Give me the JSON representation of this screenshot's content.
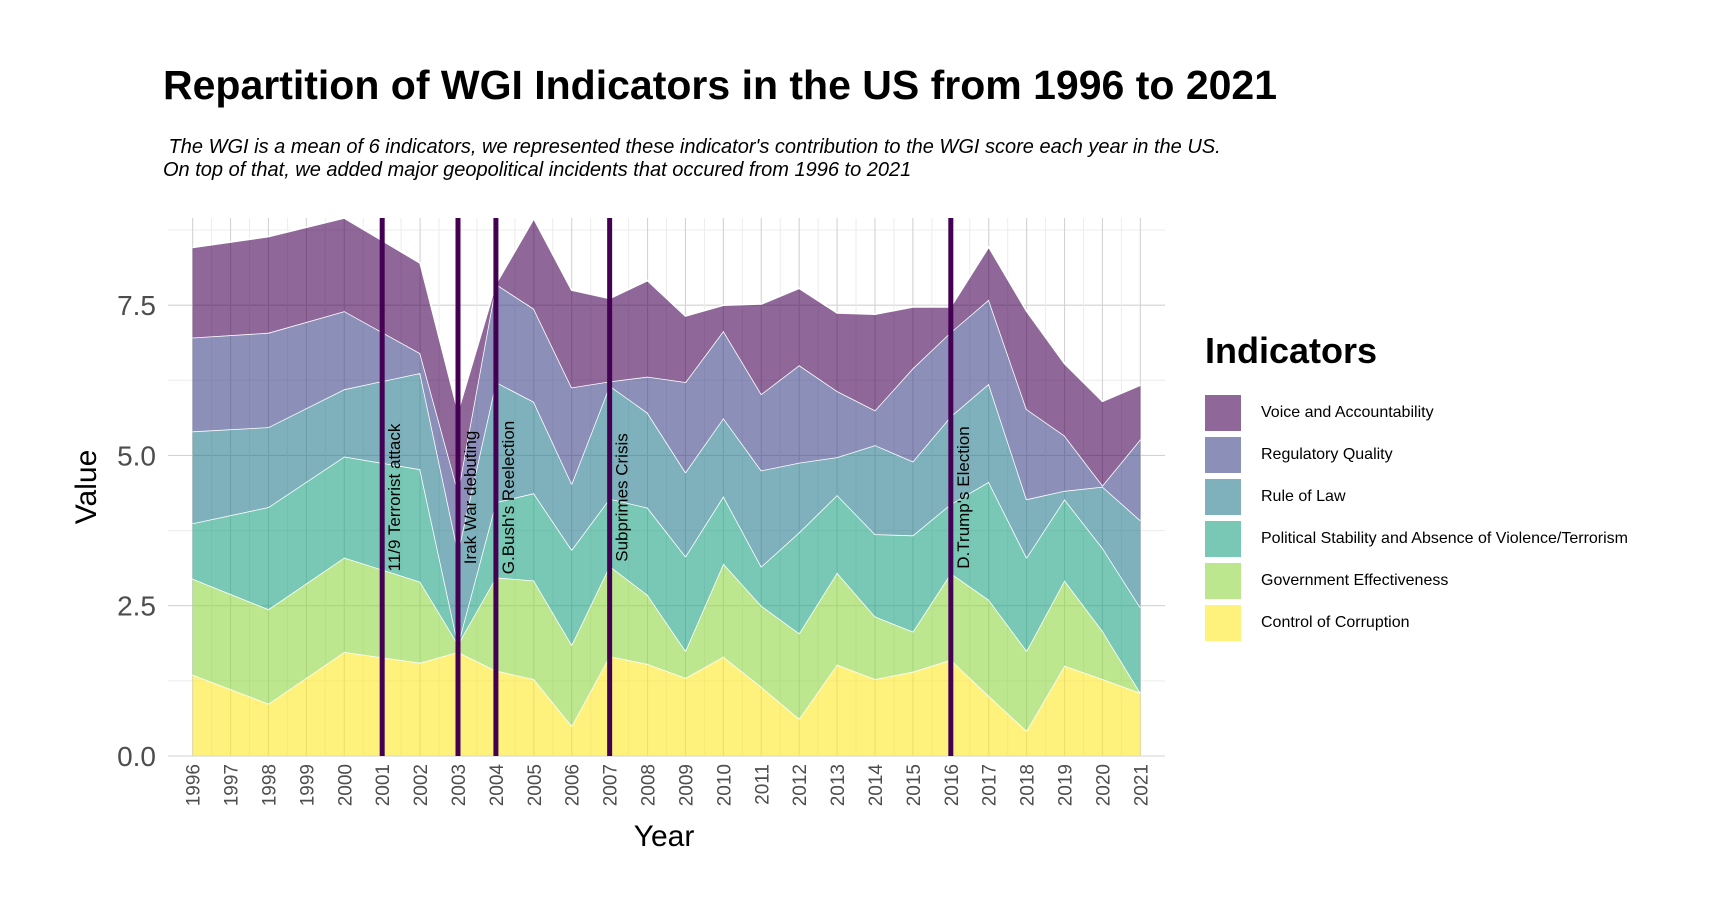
{
  "title": "Repartition of WGI Indicators in the US from 1996 to 2021",
  "subtitle": " The WGI is a mean of 6 indicators, we represented these indicator's contribution to the WGI score each year in the US.\nOn top of that, we added major geopolitical incidents that occured from 1996 to 2021",
  "chart_data": {
    "type": "area",
    "stacked": true,
    "xlabel": "Year",
    "ylabel": "Value",
    "xlim": [
      1995.35,
      2021.65
    ],
    "ylim": [
      0,
      8.95
    ],
    "yticks": [
      0.0,
      2.5,
      5.0,
      7.5
    ],
    "ytick_labels": [
      "0.0",
      "2.5",
      "5.0",
      "7.5"
    ],
    "x": [
      1996,
      1998,
      2000,
      2002,
      2003,
      2004,
      2005,
      2006,
      2007,
      2008,
      2009,
      2010,
      2011,
      2012,
      2013,
      2014,
      2015,
      2016,
      2017,
      2018,
      2019,
      2020,
      2021
    ],
    "x_tick_labels": [
      "1996",
      "1997",
      "1998",
      "1999",
      "2000",
      "2001",
      "2002",
      "2003",
      "2004",
      "2005",
      "2006",
      "2007",
      "2008",
      "2009",
      "2010",
      "2011",
      "2012",
      "2013",
      "2014",
      "2015",
      "2016",
      "2017",
      "2018",
      "2019",
      "2020",
      "2021"
    ],
    "grid": true,
    "legend_title": "Indicators",
    "legend_position": "right",
    "series": [
      {
        "name": "Control of Corruption",
        "color": "#fde725",
        "values": [
          1.35,
          0.87,
          1.73,
          1.55,
          1.73,
          1.42,
          1.28,
          0.5,
          1.66,
          1.53,
          1.3,
          1.65,
          1.15,
          0.62,
          1.52,
          1.28,
          1.4,
          1.6,
          1.0,
          0.42,
          1.5,
          1.28,
          1.05
        ]
      },
      {
        "name": "Government Effectiveness",
        "color": "#8fd744",
        "values": [
          1.6,
          1.57,
          1.57,
          1.35,
          0.13,
          1.55,
          1.64,
          1.35,
          1.5,
          1.15,
          0.45,
          1.55,
          1.35,
          1.42,
          1.53,
          1.04,
          0.67,
          1.44,
          1.6,
          1.33,
          1.42,
          0.8,
          0.0
        ]
      },
      {
        "name": "Political Stability and Absence of Violence/Terrorism",
        "color": "#20a386",
        "values": [
          0.92,
          1.7,
          1.68,
          1.87,
          0.0,
          1.25,
          1.45,
          1.58,
          1.12,
          1.45,
          1.57,
          1.12,
          0.65,
          1.68,
          1.29,
          1.37,
          1.6,
          1.15,
          1.96,
          1.55,
          1.35,
          1.38,
          1.42
        ]
      },
      {
        "name": "Rule of Law",
        "color": "#287d8e",
        "values": [
          1.53,
          1.33,
          1.12,
          1.6,
          1.54,
          2.0,
          1.52,
          1.1,
          1.88,
          1.58,
          1.4,
          1.3,
          1.6,
          1.16,
          0.63,
          1.48,
          1.23,
          1.46,
          1.63,
          0.97,
          0.14,
          1.02,
          1.45
        ]
      },
      {
        "name": "Regulatory Quality",
        "color": "#404688",
        "values": [
          1.56,
          1.57,
          1.3,
          0.33,
          1.0,
          1.63,
          1.55,
          1.6,
          0.07,
          0.6,
          1.5,
          1.45,
          1.27,
          1.62,
          1.1,
          0.58,
          1.55,
          1.4,
          1.4,
          1.5,
          0.92,
          0.02,
          1.35
        ]
      },
      {
        "name": "Voice and Accountability",
        "color": "#440154",
        "values": [
          1.5,
          1.6,
          1.55,
          1.5,
          1.33,
          0.0,
          1.5,
          1.62,
          1.38,
          1.6,
          1.1,
          0.43,
          1.5,
          1.28,
          1.3,
          1.6,
          1.02,
          0.42,
          0.88,
          1.63,
          1.2,
          1.4,
          0.9
        ]
      }
    ],
    "events": [
      {
        "label": "11/9 Terrorist attack",
        "x": 2001.0
      },
      {
        "label": "Irak War debuting",
        "x": 2003.0
      },
      {
        "label": "G.Bush's Reelection",
        "x": 2004.0
      },
      {
        "label": "Subprimes Crisis",
        "x": 2007.0
      },
      {
        "label": "D.Trump's Election",
        "x": 2016.0
      }
    ],
    "event_line_color": "#440154",
    "area_opacity": 0.6
  }
}
